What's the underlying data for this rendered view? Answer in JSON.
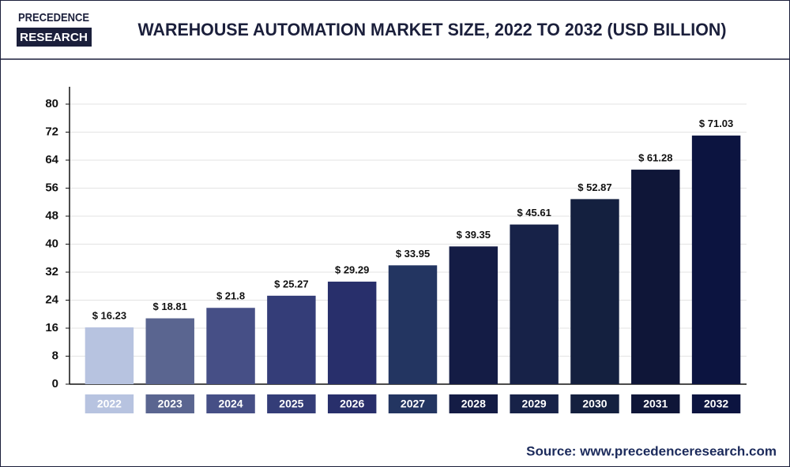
{
  "chart_data": {
    "type": "bar",
    "logo": [
      "PRECEDENCE",
      "RESEARCH"
    ],
    "title": "WAREHOUSE AUTOMATION MARKET SIZE, 2022 TO 2032 (USD BILLION)",
    "categories": [
      "2022",
      "2023",
      "2024",
      "2025",
      "2026",
      "2027",
      "2028",
      "2029",
      "2030",
      "2031",
      "2032"
    ],
    "values": [
      16.23,
      18.81,
      21.8,
      25.27,
      29.29,
      33.95,
      39.35,
      45.61,
      52.87,
      61.28,
      71.03
    ],
    "value_labels": [
      "$ 16.23",
      "$ 18.81",
      "$ 21.8",
      "$ 25.27",
      "$ 29.29",
      "$ 33.95",
      "$ 39.35",
      "$ 45.61",
      "$ 52.87",
      "$ 61.28",
      "$ 71.03"
    ],
    "colors": [
      "#b7c3e0",
      "#5a6590",
      "#464f86",
      "#343d78",
      "#282f6b",
      "#233561",
      "#141c45",
      "#172248",
      "#14203f",
      "#0f1638",
      "#0c1440"
    ],
    "ylim": [
      0,
      80
    ],
    "yticks": [
      0,
      8,
      16,
      24,
      32,
      40,
      48,
      56,
      64,
      72,
      80
    ],
    "grid": true,
    "source": "Source: www.precedenceresearch.com"
  }
}
